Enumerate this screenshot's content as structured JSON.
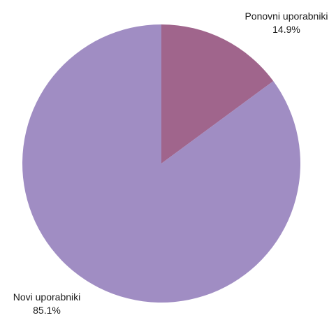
{
  "chart_data": {
    "type": "pie",
    "slices": [
      {
        "label": "Ponovni uporabniki",
        "value": 14.9,
        "value_label": "14.9%",
        "color": "#a0658c"
      },
      {
        "label": "Novi uporabniki",
        "value": 85.1,
        "value_label": "85.1%",
        "color": "#a08dc3"
      }
    ],
    "start_position": "12 o'clock",
    "direction": "clockwise",
    "legend": "none",
    "label_placement": "outside"
  }
}
